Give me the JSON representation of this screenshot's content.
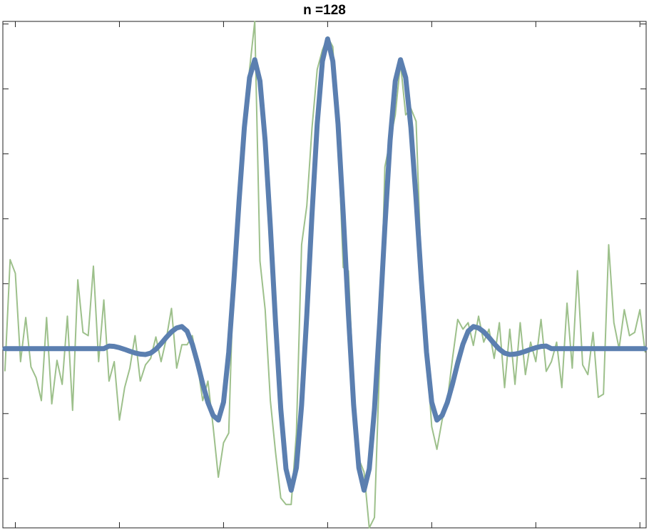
{
  "chart_data": {
    "type": "line",
    "title": "n =128",
    "x": [
      -3.1,
      -3.05,
      -3.0,
      -2.95,
      -2.9,
      -2.85,
      -2.8,
      -2.75,
      -2.7,
      -2.65,
      -2.6,
      -2.55,
      -2.5,
      -2.45,
      -2.4,
      -2.35,
      -2.3,
      -2.25,
      -2.2,
      -2.15,
      -2.1,
      -2.05,
      -2.0,
      -1.95,
      -1.9,
      -1.85,
      -1.8,
      -1.75,
      -1.7,
      -1.65,
      -1.6,
      -1.55,
      -1.5,
      -1.45,
      -1.4,
      -1.35,
      -1.3,
      -1.25,
      -1.2,
      -1.15,
      -1.1,
      -1.05,
      -1.0,
      -0.95,
      -0.9,
      -0.85,
      -0.8,
      -0.75,
      -0.7,
      -0.65,
      -0.6,
      -0.55,
      -0.5,
      -0.45,
      -0.4,
      -0.35,
      -0.3,
      -0.25,
      -0.2,
      -0.15,
      -0.1,
      -0.05,
      0.0,
      0.05,
      0.1,
      0.15,
      0.2,
      0.25,
      0.3,
      0.35,
      0.4,
      0.45,
      0.5,
      0.55,
      0.6,
      0.65,
      0.7,
      0.75,
      0.8,
      0.85,
      0.9,
      0.95,
      1.0,
      1.05,
      1.1,
      1.15,
      1.2,
      1.25,
      1.3,
      1.35,
      1.4,
      1.45,
      1.5,
      1.55,
      1.6,
      1.65,
      1.7,
      1.75,
      1.8,
      1.85,
      1.9,
      1.95,
      2.0,
      2.05,
      2.1,
      2.15,
      2.2,
      2.25,
      2.3,
      2.35,
      2.4,
      2.45,
      2.5,
      2.55,
      2.6,
      2.65,
      2.7,
      2.75,
      2.8,
      2.85,
      2.9,
      2.95,
      3.0,
      3.05
    ],
    "series": [
      {
        "color": "#9dc08b",
        "width": 2,
        "values": [
          -0.34,
          1.37,
          1.16,
          -0.2,
          0.48,
          -0.28,
          -0.45,
          -0.8,
          0.48,
          -0.85,
          -0.18,
          -0.55,
          0.5,
          -0.95,
          1.06,
          0.25,
          0.2,
          1.27,
          -0.2,
          0.75,
          -0.5,
          -0.2,
          -1.1,
          -0.6,
          -0.3,
          0.2,
          -0.5,
          -0.25,
          -0.15,
          0.18,
          -0.2,
          0.15,
          0.62,
          -0.3,
          0.06,
          0.06,
          0.2,
          -0.25,
          -0.8,
          -0.5,
          -1.2,
          -1.98,
          -1.45,
          -1.3,
          1.3,
          2.5,
          3.6,
          4.3,
          5.04,
          1.35,
          0.6,
          -0.8,
          -1.6,
          -2.3,
          -2.4,
          -2.4,
          -1.3,
          1.6,
          2.2,
          3.4,
          4.3,
          4.6,
          4.8,
          4.65,
          3.3,
          1.25,
          1.2,
          -0.6,
          -1.7,
          -1.9,
          -2.76,
          -2.6,
          -0.2,
          2.8,
          3.2,
          3.6,
          4.4,
          3.6,
          3.7,
          3.5,
          1.2,
          -0.05,
          -1.2,
          -1.55,
          -1.1,
          -0.8,
          -0.15,
          0.45,
          0.3,
          0.4,
          0.05,
          0.5,
          0.1,
          0.3,
          -0.15,
          0.4,
          -0.6,
          0.3,
          -0.55,
          0.4,
          -0.4,
          0.1,
          -0.2,
          0.45,
          -0.35,
          -0.2,
          0.1,
          -0.6,
          0.7,
          -0.3,
          1.2,
          -0.25,
          -0.4,
          0.25,
          -0.75,
          -0.7,
          1.6,
          0.4,
          0.0,
          0.6,
          0.2,
          0.25,
          0.6,
          -0.05
        ]
      },
      {
        "color": "#5b7fb0",
        "width": 7,
        "values": [
          0,
          0,
          0,
          0,
          0,
          0,
          0,
          0,
          0,
          0,
          0,
          0,
          0,
          0,
          0,
          0,
          0,
          0,
          0,
          0,
          0.04,
          0.034,
          0.015,
          -0.011,
          -0.04,
          -0.066,
          -0.084,
          -0.09,
          -0.069,
          -0.009,
          0.077,
          0.173,
          0.259,
          0.319,
          0.34,
          0.269,
          0.069,
          -0.219,
          -0.541,
          -0.829,
          -1.029,
          -1.1,
          -0.825,
          -0.054,
          1.056,
          2.294,
          3.404,
          4.175,
          4.45,
          4.122,
          3.2,
          1.874,
          0.396,
          -0.93,
          -1.852,
          -2.18,
          -1.836,
          -0.87,
          0.52,
          2.07,
          3.46,
          4.426,
          4.77,
          4.426,
          3.46,
          2.07,
          0.52,
          -0.87,
          -1.836,
          -2.18,
          -1.852,
          -0.93,
          0.396,
          1.874,
          3.2,
          4.122,
          4.45,
          4.175,
          3.404,
          2.294,
          1.056,
          -0.054,
          -0.825,
          -1.1,
          -1.029,
          -0.829,
          -0.541,
          -0.219,
          0.069,
          0.269,
          0.34,
          0.319,
          0.259,
          0.173,
          0.077,
          -0.009,
          -0.069,
          -0.09,
          -0.084,
          -0.066,
          -0.04,
          -0.011,
          0.015,
          0.034,
          0.04,
          0,
          0,
          0,
          0,
          0,
          0,
          0,
          0,
          0,
          0,
          0,
          0,
          0,
          0,
          0,
          0,
          0,
          0,
          0
        ]
      }
    ],
    "xlim": [
      -3.12,
      3.06
    ],
    "xticks": [
      -3,
      -2,
      -1,
      0,
      1,
      2,
      3
    ],
    "ylim": [
      -2.76,
      5.04
    ],
    "yticks": [
      -2,
      -1,
      0,
      1,
      2,
      3,
      4,
      5
    ]
  }
}
